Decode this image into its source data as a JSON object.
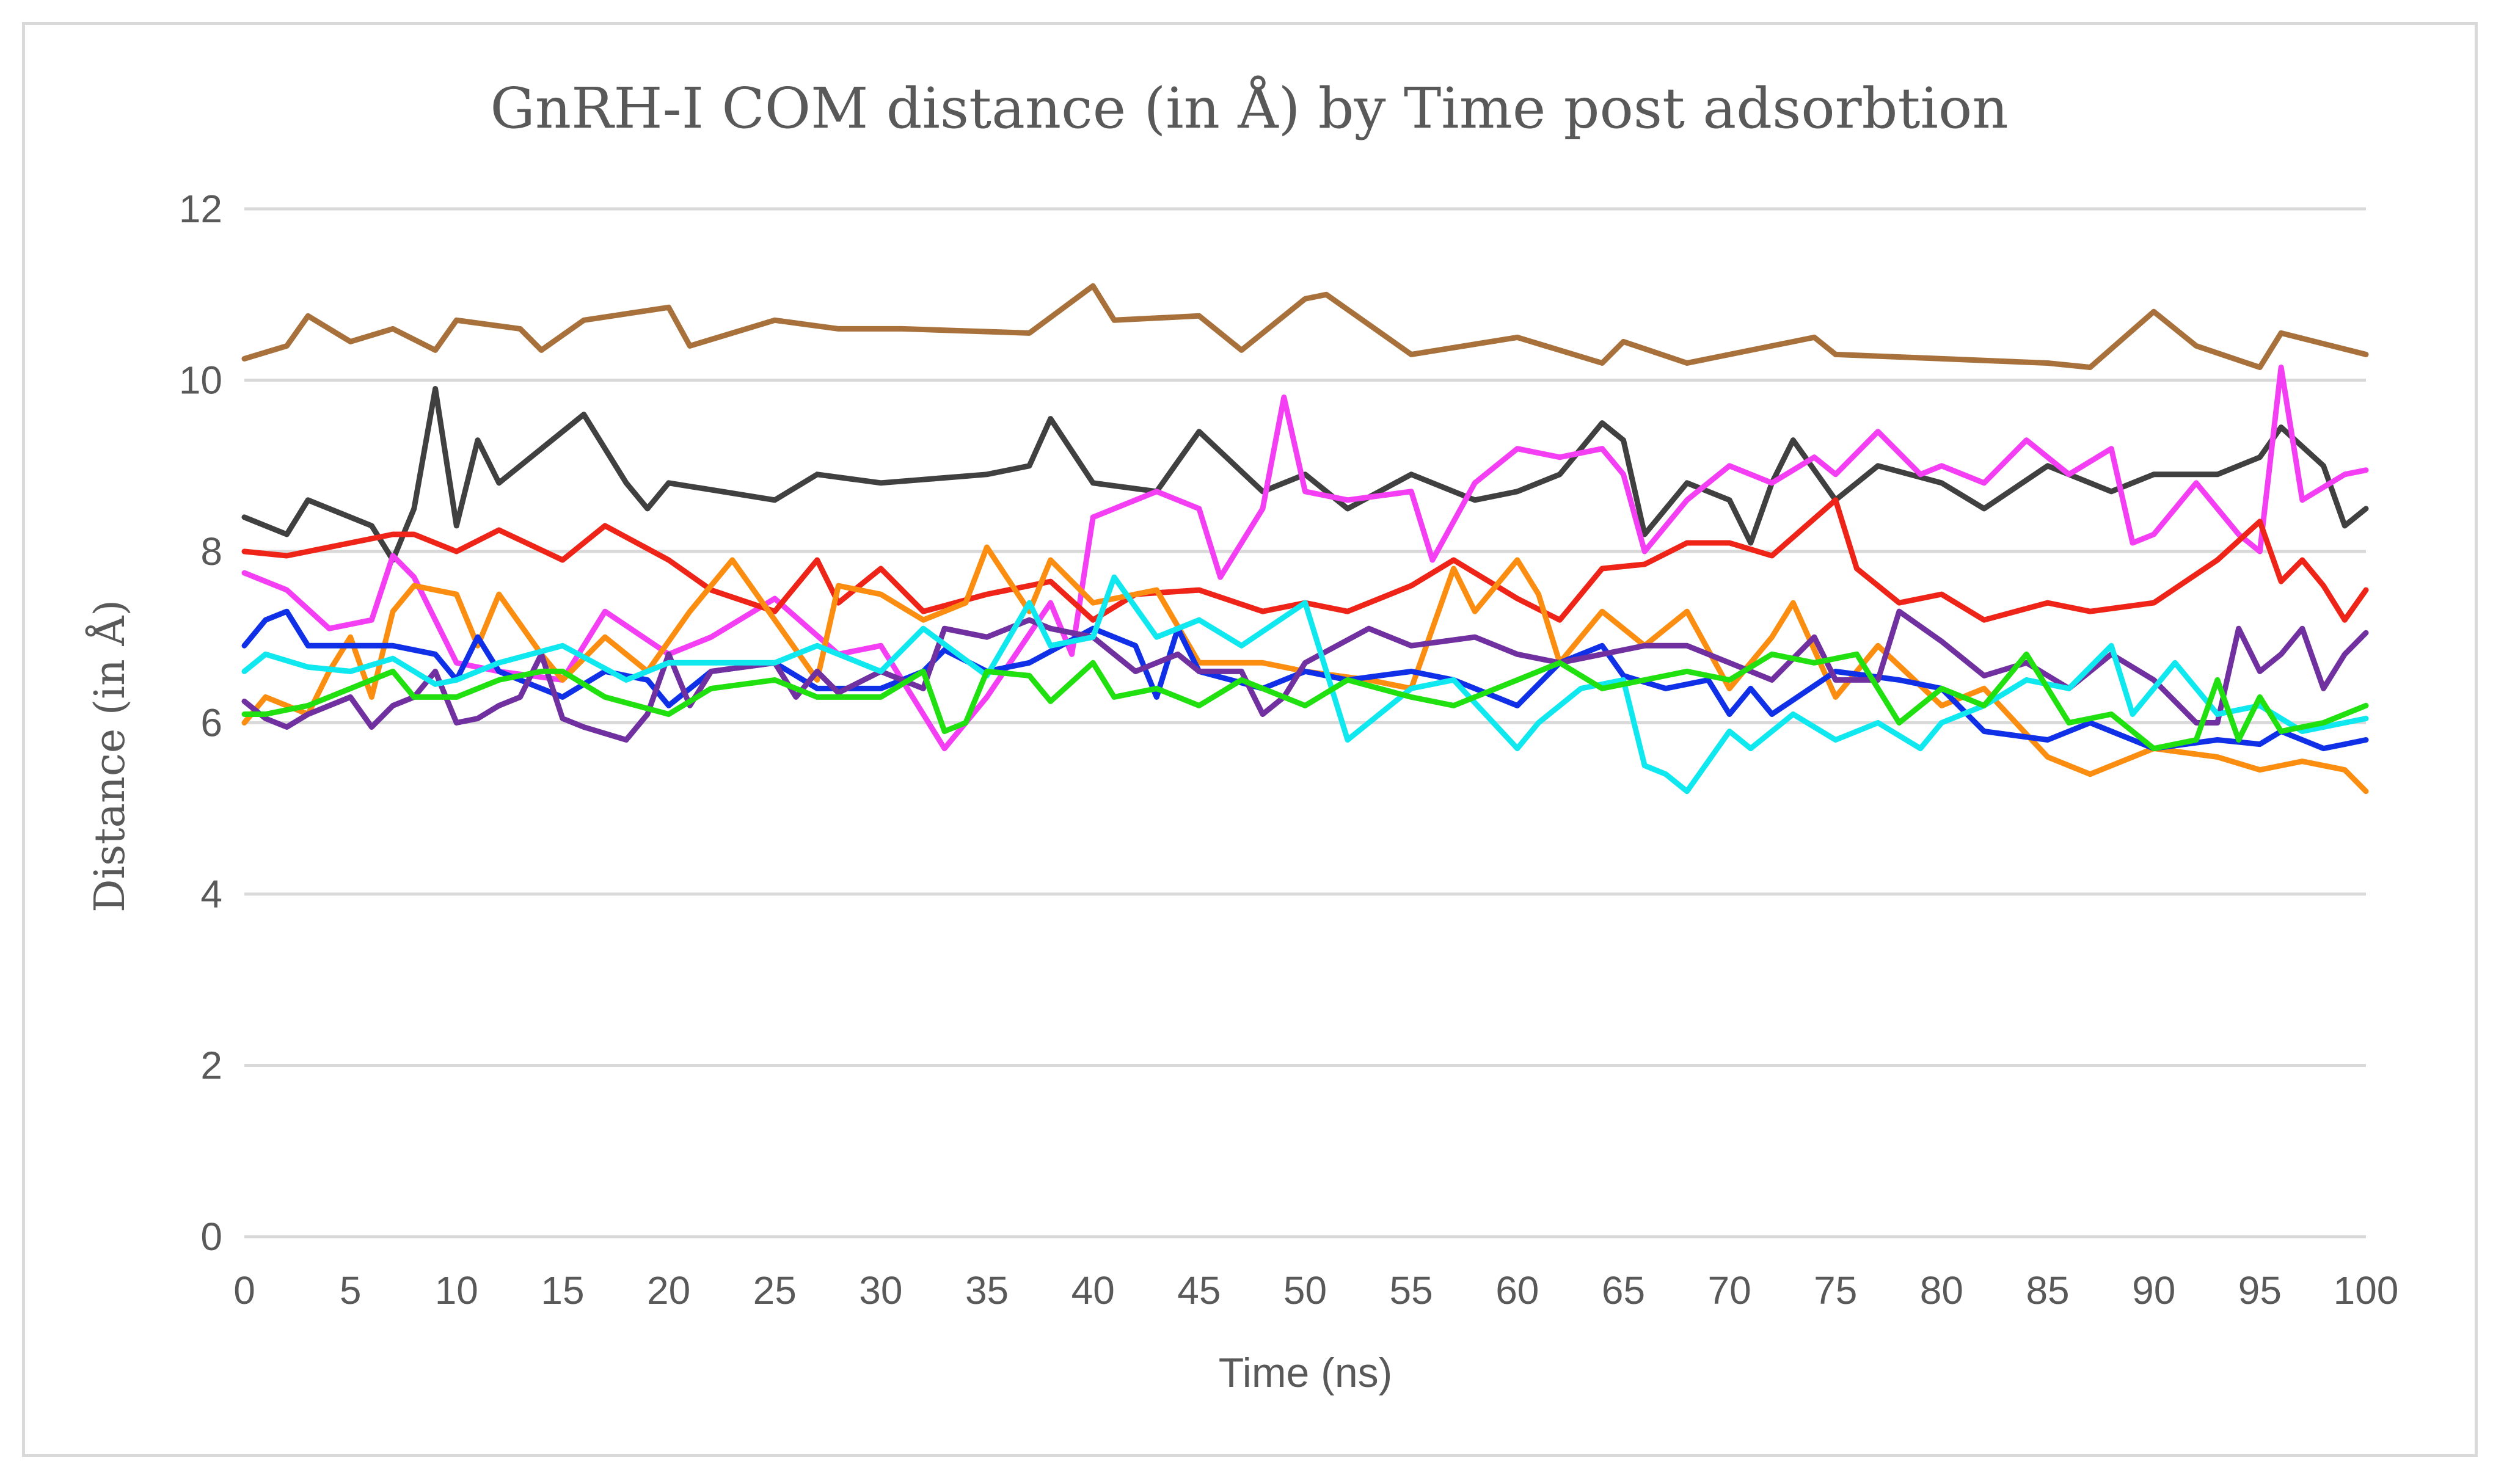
{
  "chart_data": {
    "type": "line",
    "title": "GnRH-I COM distance (in Å)  by Time post adsorbtion",
    "xlabel": "Time (ns)",
    "ylabel": "Distance (in Å)",
    "xlim": [
      0,
      100
    ],
    "ylim": [
      0,
      12
    ],
    "xticks": [
      "0",
      "5",
      "10",
      "15",
      "20",
      "25",
      "30",
      "35",
      "40",
      "45",
      "50",
      "55",
      "60",
      "65",
      "70",
      "75",
      "80",
      "85",
      "90",
      "95",
      "100"
    ],
    "yticks": [
      "0",
      "2",
      "4",
      "6",
      "8",
      "10",
      "12"
    ],
    "grid": true,
    "legend": "none",
    "series": [
      {
        "name": "brown",
        "color": "#a8703a",
        "x": [
          0,
          2,
          3,
          5,
          7,
          9,
          10,
          13,
          14,
          16,
          20,
          21,
          25,
          28,
          31,
          37,
          40,
          41,
          45,
          47,
          50,
          51,
          55,
          60,
          64,
          65,
          68,
          72,
          74,
          75,
          80,
          85,
          87,
          90,
          92,
          95,
          96,
          100
        ],
        "y": [
          10.25,
          10.4,
          10.75,
          10.45,
          10.6,
          10.35,
          10.7,
          10.6,
          10.35,
          10.7,
          10.85,
          10.4,
          10.7,
          10.6,
          10.6,
          10.55,
          11.1,
          10.7,
          10.75,
          10.35,
          10.95,
          11.0,
          10.3,
          10.5,
          10.2,
          10.45,
          10.2,
          10.4,
          10.5,
          10.3,
          10.25,
          10.2,
          10.15,
          10.8,
          10.4,
          10.15,
          10.55,
          10.3
        ]
      },
      {
        "name": "dark grey",
        "color": "#404040",
        "x": [
          0,
          2,
          3,
          6,
          7,
          8,
          9,
          10,
          11,
          12,
          14,
          16,
          18,
          19,
          20,
          25,
          27,
          30,
          35,
          37,
          38,
          40,
          43,
          45,
          48,
          50,
          52,
          55,
          58,
          60,
          62,
          64,
          65,
          66,
          68,
          70,
          71,
          72,
          73,
          75,
          77,
          80,
          82,
          85,
          88,
          90,
          93,
          95,
          96,
          98,
          99,
          100
        ],
        "y": [
          8.4,
          8.2,
          8.6,
          8.3,
          7.9,
          8.5,
          9.9,
          8.3,
          9.3,
          8.8,
          9.2,
          9.6,
          8.8,
          8.5,
          8.8,
          8.6,
          8.9,
          8.8,
          8.9,
          9.0,
          9.55,
          8.8,
          8.7,
          9.4,
          8.7,
          8.9,
          8.5,
          8.9,
          8.6,
          8.7,
          8.9,
          9.5,
          9.3,
          8.2,
          8.8,
          8.6,
          8.1,
          8.8,
          9.3,
          8.6,
          9.0,
          8.8,
          8.5,
          9.0,
          8.7,
          8.9,
          8.9,
          9.1,
          9.45,
          9.0,
          8.3,
          8.5
        ]
      },
      {
        "name": "magenta",
        "color": "#f43ef4",
        "x": [
          0,
          2,
          4,
          6,
          7,
          8,
          10,
          12,
          15,
          17,
          20,
          22,
          25,
          28,
          30,
          33,
          35,
          38,
          39,
          40,
          41,
          43,
          45,
          46,
          48,
          49,
          50,
          52,
          55,
          56,
          58,
          60,
          62,
          64,
          65,
          66,
          68,
          70,
          72,
          74,
          75,
          77,
          79,
          80,
          82,
          84,
          86,
          88,
          89,
          90,
          92,
          94,
          95,
          96,
          97,
          99,
          100
        ],
        "y": [
          7.75,
          7.55,
          7.1,
          7.2,
          7.95,
          7.7,
          6.7,
          6.6,
          6.5,
          7.3,
          6.8,
          7.0,
          7.45,
          6.8,
          6.9,
          5.7,
          6.3,
          7.4,
          6.8,
          8.4,
          8.5,
          8.7,
          8.5,
          7.7,
          8.5,
          9.8,
          8.7,
          8.6,
          8.7,
          7.9,
          8.8,
          9.2,
          9.1,
          9.2,
          8.9,
          8.0,
          8.6,
          9.0,
          8.8,
          9.1,
          8.9,
          9.4,
          8.9,
          9.0,
          8.8,
          9.3,
          8.9,
          9.2,
          8.1,
          8.2,
          8.8,
          8.2,
          8.0,
          10.15,
          8.6,
          8.9,
          8.95
        ]
      },
      {
        "name": "red",
        "color": "#ef2418",
        "x": [
          0,
          2,
          5,
          7,
          8,
          10,
          12,
          15,
          17,
          20,
          22,
          25,
          27,
          28,
          30,
          32,
          35,
          38,
          40,
          42,
          45,
          48,
          50,
          52,
          55,
          57,
          60,
          62,
          64,
          66,
          68,
          70,
          72,
          75,
          76,
          78,
          80,
          82,
          85,
          87,
          90,
          93,
          95,
          96,
          97,
          98,
          99,
          100
        ],
        "y": [
          8.0,
          7.95,
          8.1,
          8.2,
          8.2,
          8.0,
          8.25,
          7.9,
          8.3,
          7.9,
          7.55,
          7.3,
          7.9,
          7.4,
          7.8,
          7.3,
          7.5,
          7.65,
          7.2,
          7.5,
          7.55,
          7.3,
          7.4,
          7.3,
          7.6,
          7.9,
          7.45,
          7.2,
          7.8,
          7.85,
          8.1,
          8.1,
          7.95,
          8.6,
          7.8,
          7.4,
          7.5,
          7.2,
          7.4,
          7.3,
          7.4,
          7.9,
          8.35,
          7.65,
          7.9,
          7.6,
          7.2,
          7.55
        ]
      },
      {
        "name": "orange",
        "color": "#fb8d10",
        "x": [
          0,
          1,
          3,
          4,
          5,
          6,
          7,
          8,
          10,
          11,
          12,
          14,
          15,
          17,
          19,
          21,
          23,
          25,
          27,
          28,
          30,
          32,
          34,
          35,
          37,
          38,
          40,
          43,
          45,
          48,
          50,
          53,
          55,
          57,
          58,
          60,
          61,
          62,
          64,
          66,
          68,
          70,
          72,
          73,
          75,
          77,
          80,
          82,
          85,
          87,
          90,
          93,
          95,
          97,
          99,
          100
        ],
        "y": [
          6.0,
          6.3,
          6.1,
          6.6,
          7.0,
          6.3,
          7.3,
          7.6,
          7.5,
          6.9,
          7.5,
          6.8,
          6.5,
          7.0,
          6.6,
          7.3,
          7.9,
          7.2,
          6.5,
          7.6,
          7.5,
          7.2,
          7.4,
          8.05,
          7.3,
          7.9,
          7.4,
          7.55,
          6.7,
          6.7,
          6.6,
          6.5,
          6.4,
          7.8,
          7.3,
          7.9,
          7.5,
          6.7,
          7.3,
          6.9,
          7.3,
          6.4,
          7.0,
          7.4,
          6.3,
          6.9,
          6.2,
          6.4,
          5.6,
          5.4,
          5.7,
          5.6,
          5.45,
          5.55,
          5.45,
          5.2
        ]
      },
      {
        "name": "blue",
        "color": "#1030e8",
        "x": [
          0,
          1,
          2,
          3,
          5,
          7,
          9,
          10,
          11,
          12,
          15,
          17,
          19,
          20,
          22,
          25,
          27,
          30,
          32,
          33,
          35,
          37,
          40,
          42,
          43,
          44,
          45,
          48,
          50,
          52,
          55,
          57,
          60,
          62,
          64,
          65,
          67,
          69,
          70,
          71,
          72,
          75,
          78,
          80,
          82,
          85,
          87,
          90,
          93,
          95,
          96,
          98,
          99,
          100
        ],
        "y": [
          6.9,
          7.2,
          7.3,
          6.9,
          6.9,
          6.9,
          6.8,
          6.5,
          7.0,
          6.6,
          6.3,
          6.6,
          6.5,
          6.2,
          6.6,
          6.7,
          6.4,
          6.4,
          6.6,
          6.85,
          6.6,
          6.7,
          7.1,
          6.9,
          6.3,
          7.1,
          6.6,
          6.4,
          6.6,
          6.5,
          6.6,
          6.5,
          6.2,
          6.7,
          6.9,
          6.55,
          6.4,
          6.5,
          6.1,
          6.4,
          6.1,
          6.6,
          6.5,
          6.4,
          5.9,
          5.8,
          6.0,
          5.7,
          5.8,
          5.75,
          5.9,
          5.7,
          5.75,
          5.8
        ]
      },
      {
        "name": "purple",
        "color": "#7030a0",
        "x": [
          0,
          1,
          2,
          3,
          5,
          6,
          7,
          8,
          9,
          10,
          11,
          12,
          13,
          14,
          15,
          16,
          18,
          19,
          20,
          21,
          22,
          25,
          26,
          27,
          28,
          30,
          32,
          33,
          35,
          37,
          38,
          40,
          42,
          44,
          45,
          47,
          48,
          49,
          50,
          53,
          55,
          58,
          60,
          62,
          64,
          66,
          68,
          70,
          72,
          74,
          75,
          77,
          78,
          80,
          82,
          84,
          86,
          88,
          90,
          92,
          93,
          94,
          95,
          96,
          97,
          98,
          99,
          100
        ],
        "y": [
          6.25,
          6.05,
          5.95,
          6.1,
          6.3,
          5.95,
          6.2,
          6.3,
          6.6,
          6.0,
          6.05,
          6.2,
          6.3,
          6.8,
          6.05,
          5.95,
          5.8,
          6.1,
          6.8,
          6.2,
          6.6,
          6.7,
          6.3,
          6.6,
          6.35,
          6.6,
          6.4,
          7.1,
          7.0,
          7.2,
          7.1,
          7.0,
          6.6,
          6.8,
          6.6,
          6.6,
          6.1,
          6.3,
          6.7,
          7.1,
          6.9,
          7.0,
          6.8,
          6.7,
          6.8,
          6.9,
          6.9,
          6.7,
          6.5,
          7.0,
          6.5,
          6.5,
          7.3,
          6.95,
          6.55,
          6.7,
          6.4,
          6.8,
          6.5,
          6.0,
          6.0,
          7.1,
          6.6,
          6.8,
          7.1,
          6.4,
          6.8,
          7.05
        ]
      },
      {
        "name": "cyan",
        "color": "#10e8f0",
        "x": [
          0,
          1,
          3,
          5,
          7,
          9,
          10,
          12,
          15,
          18,
          20,
          22,
          25,
          27,
          30,
          32,
          35,
          37,
          38,
          40,
          41,
          43,
          45,
          47,
          50,
          52,
          55,
          57,
          60,
          61,
          63,
          65,
          66,
          67,
          68,
          70,
          71,
          73,
          75,
          77,
          79,
          80,
          82,
          84,
          86,
          88,
          89,
          91,
          93,
          95,
          97,
          99,
          100
        ],
        "y": [
          6.6,
          6.8,
          6.65,
          6.6,
          6.75,
          6.45,
          6.5,
          6.7,
          6.9,
          6.5,
          6.7,
          6.7,
          6.7,
          6.9,
          6.6,
          7.1,
          6.55,
          7.4,
          6.9,
          7.0,
          7.7,
          7.0,
          7.2,
          6.9,
          7.4,
          5.8,
          6.4,
          6.5,
          5.7,
          6.0,
          6.4,
          6.5,
          5.5,
          5.4,
          5.2,
          5.9,
          5.7,
          6.1,
          5.8,
          6.0,
          5.7,
          6.0,
          6.2,
          6.5,
          6.4,
          6.9,
          6.1,
          6.7,
          6.1,
          6.2,
          5.9,
          6.0,
          6.05
        ]
      },
      {
        "name": "green",
        "color": "#20e010",
        "x": [
          0,
          1,
          3,
          5,
          7,
          8,
          10,
          12,
          14,
          15,
          17,
          20,
          22,
          25,
          27,
          30,
          32,
          33,
          34,
          35,
          37,
          38,
          40,
          41,
          43,
          45,
          47,
          50,
          52,
          55,
          57,
          60,
          62,
          64,
          66,
          68,
          70,
          72,
          74,
          76,
          78,
          80,
          82,
          84,
          86,
          88,
          90,
          92,
          93,
          94,
          95,
          96,
          98,
          100
        ],
        "y": [
          6.1,
          6.1,
          6.2,
          6.4,
          6.6,
          6.3,
          6.3,
          6.5,
          6.6,
          6.6,
          6.3,
          6.1,
          6.4,
          6.5,
          6.3,
          6.3,
          6.6,
          5.9,
          6.0,
          6.6,
          6.55,
          6.25,
          6.7,
          6.3,
          6.4,
          6.2,
          6.5,
          6.2,
          6.5,
          6.3,
          6.2,
          6.5,
          6.7,
          6.4,
          6.5,
          6.6,
          6.5,
          6.8,
          6.7,
          6.8,
          6.0,
          6.4,
          6.2,
          6.8,
          6.0,
          6.1,
          5.7,
          5.8,
          6.5,
          5.8,
          6.3,
          5.9,
          6.0,
          6.2
        ]
      }
    ]
  }
}
